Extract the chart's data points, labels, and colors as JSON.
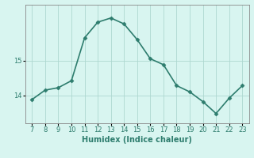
{
  "x": [
    7,
    8,
    9,
    10,
    11,
    12,
    13,
    14,
    15,
    16,
    17,
    18,
    19,
    20,
    21,
    22,
    23
  ],
  "y": [
    13.88,
    14.15,
    14.22,
    14.42,
    15.65,
    16.1,
    16.22,
    16.05,
    15.6,
    15.05,
    14.88,
    14.28,
    14.1,
    13.82,
    13.48,
    13.92,
    14.28
  ],
  "line_color": "#2e7d6e",
  "bg_color": "#d8f5f0",
  "grid_color": "#aed8d0",
  "xlabel": "Humidex (Indice chaleur)",
  "yticks": [
    14,
    15
  ],
  "xticks": [
    7,
    8,
    9,
    10,
    11,
    12,
    13,
    14,
    15,
    16,
    17,
    18,
    19,
    20,
    21,
    22,
    23
  ],
  "ylim": [
    13.2,
    16.6
  ],
  "xlim": [
    6.5,
    23.5
  ],
  "font_color": "#2e7d6e",
  "marker_size": 2.5,
  "line_width": 1.2
}
